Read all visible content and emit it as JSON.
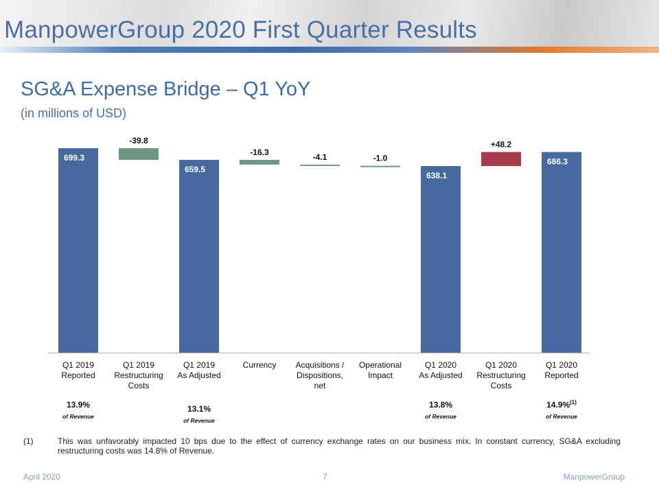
{
  "page": {
    "title": "ManpowerGroup 2020 First Quarter Results"
  },
  "chart_data": {
    "type": "bar",
    "title": "SG&A Expense Bridge – Q1 YoY",
    "subtitle": "(in millions of USD)",
    "ylim": [
      0,
      699.3
    ],
    "categories": [
      {
        "label": [
          "Q1 2019",
          "Reported"
        ]
      },
      {
        "label": [
          "Q1 2019",
          "Restructuring",
          "Costs"
        ]
      },
      {
        "label": [
          "Q1 2019",
          "As Adjusted"
        ]
      },
      {
        "label": [
          "Currency"
        ]
      },
      {
        "label": [
          "Acquisitions /",
          "Dispositions,",
          "net"
        ]
      },
      {
        "label": [
          "Operational",
          "Impact"
        ]
      },
      {
        "label": [
          "Q1 2020",
          "As Adjusted"
        ]
      },
      {
        "label": [
          "Q1 2020",
          "Restructuring",
          "Costs"
        ]
      },
      {
        "label": [
          "Q1 2020",
          "Reported"
        ]
      }
    ],
    "bars": [
      {
        "kind": "total",
        "start": 0,
        "end": 699.3,
        "value_label": "699.3",
        "color": "#46699f"
      },
      {
        "kind": "delta",
        "start": 659.5,
        "end": 699.3,
        "value_label": "-39.8",
        "color": "#6e9782"
      },
      {
        "kind": "total",
        "start": 0,
        "end": 659.5,
        "value_label": "659.5",
        "color": "#46699f"
      },
      {
        "kind": "delta",
        "start": 643.2,
        "end": 659.5,
        "value_label": "-16.3",
        "color": "#6e9782"
      },
      {
        "kind": "delta",
        "start": 639.1,
        "end": 643.2,
        "value_label": "-4.1",
        "color": "#6e9782"
      },
      {
        "kind": "delta",
        "start": 638.1,
        "end": 639.1,
        "value_label": "-1.0",
        "color": "#6e9782"
      },
      {
        "kind": "total",
        "start": 0,
        "end": 638.1,
        "value_label": "638.1",
        "color": "#46699f"
      },
      {
        "kind": "delta",
        "start": 638.1,
        "end": 686.3,
        "value_label": "+48.2",
        "color": "#a63c49"
      },
      {
        "kind": "total",
        "start": 0,
        "end": 686.3,
        "value_label": "686.3",
        "color": "#46699f"
      }
    ],
    "revenue_pct": [
      {
        "index": 0,
        "value": "13.9%",
        "sup": "",
        "caption": "of Revenue"
      },
      {
        "index": 2,
        "value": "13.1%",
        "sup": "",
        "caption": "of Revenue"
      },
      {
        "index": 6,
        "value": "13.8%",
        "sup": "",
        "caption": "of Revenue"
      },
      {
        "index": 8,
        "value": "14.9%",
        "sup": "(1)",
        "caption": "of Revenue"
      }
    ]
  },
  "footnote": {
    "number": "(1)",
    "text": "This was unfavorably  impacted 10 bps due to the effect of currency exchange rates on our business mix. In constant currency, SG&A excluding restructuring costs was 14.8% of Revenue."
  },
  "footer": {
    "date": "April 2020",
    "page_number": "7",
    "company": "ManpowerGroup"
  }
}
